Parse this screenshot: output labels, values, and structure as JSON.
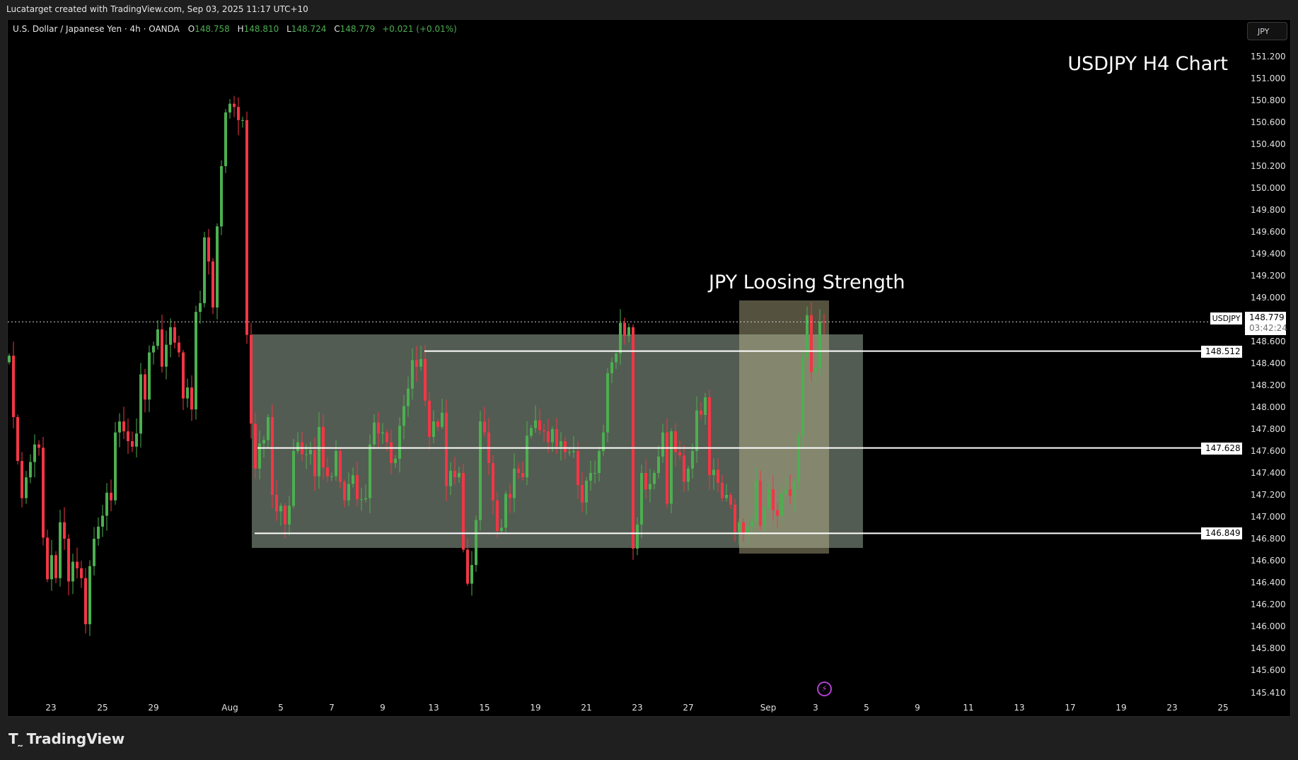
{
  "header": {
    "credit": "Lucatarget created with TradingView.com, Sep 03, 2025 11:17 UTC+10"
  },
  "legend": {
    "symbol": "U.S. Dollar / Japanese Yen · 4h · OANDA",
    "open_label": "O",
    "open": "148.758",
    "high_label": "H",
    "high": "148.810",
    "low_label": "L",
    "low": "148.724",
    "close_label": "C",
    "close": "148.779",
    "change": "+0.021 (+0.01%)"
  },
  "currency_button": "JPY",
  "annotations": {
    "title": "USDJPY H4 Chart",
    "label": "JPY Loosing Strength"
  },
  "price_axis": {
    "ticks": [
      "151.200",
      "151.000",
      "150.800",
      "150.600",
      "150.400",
      "150.200",
      "150.000",
      "149.800",
      "149.600",
      "149.400",
      "149.200",
      "149.000",
      "148.600",
      "148.400",
      "148.200",
      "148.000",
      "147.800",
      "147.600",
      "147.400",
      "147.200",
      "147.000",
      "146.800",
      "146.600",
      "146.400",
      "146.200",
      "146.000",
      "145.800",
      "145.600"
    ],
    "bottom_tick": "145.410",
    "current": {
      "symbol": "USDJPY",
      "price": "148.779",
      "countdown": "03:42:24"
    },
    "levels": [
      "148.512",
      "147.628",
      "146.849"
    ]
  },
  "time_axis": {
    "ticks": [
      "23",
      "25",
      "29",
      "Aug",
      "5",
      "7",
      "9",
      "13",
      "15",
      "19",
      "21",
      "23",
      "27",
      "Sep",
      "3",
      "5",
      "9",
      "11",
      "13",
      "17",
      "19",
      "23",
      "25"
    ]
  },
  "brand": {
    "logo": "TradingView"
  },
  "colors": {
    "up": "#4caf50",
    "down": "#f23645",
    "range_box": "#525b51",
    "highlight_box": "#c8c396",
    "event_icon": "#b23fd3"
  },
  "icons": {
    "event": "lightning-bolt-icon"
  },
  "chart_data": {
    "type": "candlestick",
    "timeframe": "4h",
    "first_open": 148.41,
    "closes": [
      148.47,
      147.91,
      147.51,
      147.17,
      147.36,
      147.5,
      147.66,
      147.63,
      146.81,
      146.43,
      146.65,
      146.44,
      146.95,
      146.8,
      146.41,
      146.59,
      146.53,
      146.44,
      146.02,
      146.55,
      146.8,
      146.91,
      147.01,
      147.22,
      147.15,
      147.77,
      147.87,
      147.78,
      147.69,
      147.64,
      147.76,
      148.3,
      148.07,
      148.5,
      148.56,
      148.71,
      148.37,
      148.57,
      148.73,
      148.59,
      148.5,
      148.08,
      148.18,
      147.98,
      148.87,
      148.95,
      149.55,
      149.33,
      148.91,
      149.65,
      150.2,
      150.69,
      150.77,
      150.74,
      150.62,
      150.62,
      148.66,
      147.85,
      147.44,
      147.67,
      147.7,
      147.91,
      147.2,
      147.05,
      147.1,
      146.93,
      147.1,
      147.6,
      147.68,
      147.57,
      147.57,
      147.61,
      147.37,
      147.82,
      147.45,
      147.37,
      147.37,
      147.6,
      147.32,
      147.15,
      147.3,
      147.38,
      147.16,
      147.16,
      147.17,
      147.66,
      147.86,
      147.76,
      147.77,
      147.68,
      147.49,
      147.53,
      147.83,
      148.01,
      148.17,
      148.43,
      148.37,
      148.44,
      148.06,
      147.73,
      147.87,
      147.82,
      147.95,
      147.28,
      147.42,
      147.36,
      147.4,
      146.7,
      146.39,
      146.56,
      146.97,
      147.87,
      147.77,
      147.49,
      147.15,
      146.87,
      146.9,
      147.21,
      147.17,
      147.44,
      147.4,
      147.36,
      147.74,
      147.81,
      147.88,
      147.79,
      147.78,
      147.68,
      147.8,
      147.64,
      147.69,
      147.59,
      147.59,
      147.6,
      147.29,
      147.13,
      147.33,
      147.4,
      147.4,
      147.6,
      147.77,
      148.31,
      148.41,
      148.49,
      148.77,
      148.65,
      148.73,
      146.71,
      146.93,
      147.4,
      147.25,
      147.3,
      147.4,
      147.55,
      147.77,
      147.12,
      147.78,
      147.59,
      147.56,
      147.32,
      147.44,
      147.6,
      147.97,
      147.93,
      148.09,
      147.38,
      147.43,
      147.31,
      147.17,
      147.2,
      147.11,
      146.86,
      146.95,
      146.84,
      146.91,
      146.96,
      147.33,
      146.92,
      147.08,
      147.25,
      147.06,
      147.01,
      147.21,
      147.25,
      147.19,
      147.32,
      147.74,
      148.46,
      148.84,
      148.32,
      148.36,
      148.78,
      148.779
    ],
    "horizontal_levels": [
      148.512,
      147.628,
      146.849
    ],
    "last_price": 148.779,
    "ylim": [
      145.41,
      151.2
    ]
  }
}
